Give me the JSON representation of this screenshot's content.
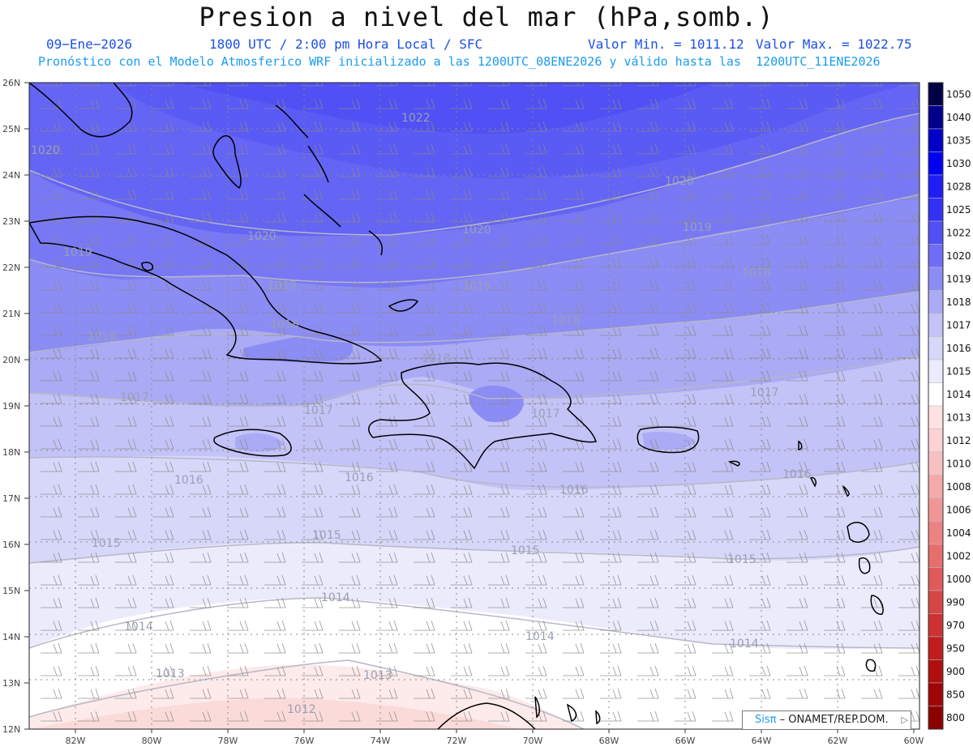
{
  "header": {
    "title": "Presion a nivel del mar (hPa,somb.)",
    "date": "09−Ene−2026",
    "time": "1800 UTC / 2:00 pm Hora Local / SFC",
    "min": "Valor Min. = 1011.12",
    "max": "Valor Max. = 1022.75",
    "forecast": "Pronóstico con el Modelo Atmosferico WRF inicializado a las 1200UTC_08ENE2026 y válido hasta las  1200UTC_11ENE2026"
  },
  "axes": {
    "lat_labels": [
      "26N",
      "25N",
      "24N",
      "23N",
      "22N",
      "21N",
      "20N",
      "19N",
      "18N",
      "17N",
      "16N",
      "15N",
      "14N",
      "13N",
      "12N"
    ],
    "lon_labels": [
      "82W",
      "80W",
      "78W",
      "76W",
      "74W",
      "72W",
      "70W",
      "68W",
      "66W",
      "64W",
      "62W",
      "60W"
    ]
  },
  "colorbar": {
    "levels": [
      "1050",
      "1040",
      "1035",
      "1030",
      "1028",
      "1025",
      "1022",
      "1020",
      "1019",
      "1018",
      "1017",
      "1016",
      "1015",
      "1014",
      "1013",
      "1012",
      "1010",
      "1008",
      "1006",
      "1004",
      "1002",
      "1000",
      "990",
      "970",
      "950",
      "900",
      "850",
      "800"
    ],
    "colors": [
      "#000046",
      "#00008c",
      "#0000c8",
      "#0000f0",
      "#1e1ef5",
      "#3232f5",
      "#5050f5",
      "#6e6ef5",
      "#8c8cf5",
      "#aaaaf5",
      "#c3c3f8",
      "#d7d7fa",
      "#ebebfc",
      "#ffffff",
      "#ffe1e1",
      "#fcd2d2",
      "#f8c0c0",
      "#f4aaaa",
      "#f09696",
      "#ec8282",
      "#e66e6e",
      "#e05a5a",
      "#d64646",
      "#cc3232",
      "#c01e1e",
      "#b00f0f",
      "#a00505",
      "#8c0000"
    ]
  },
  "isobar_labels": [
    {
      "text": "1022"
    },
    {
      "text": "1020"
    },
    {
      "text": "1020"
    },
    {
      "text": "1020"
    },
    {
      "text": "1020"
    },
    {
      "text": "1019"
    },
    {
      "text": "1019"
    },
    {
      "text": "1019"
    },
    {
      "text": "1019"
    },
    {
      "text": "1018"
    },
    {
      "text": "1018"
    },
    {
      "text": "1018"
    },
    {
      "text": "1018"
    },
    {
      "text": "1018"
    },
    {
      "text": "1017"
    },
    {
      "text": "1017"
    },
    {
      "text": "1017"
    },
    {
      "text": "1017"
    },
    {
      "text": "1016"
    },
    {
      "text": "1016"
    },
    {
      "text": "1016"
    },
    {
      "text": "1016"
    },
    {
      "text": "1015"
    },
    {
      "text": "1015"
    },
    {
      "text": "1015"
    },
    {
      "text": "1015"
    },
    {
      "text": "1014"
    },
    {
      "text": "1014"
    },
    {
      "text": "1014"
    },
    {
      "text": "1014"
    },
    {
      "text": "1013"
    },
    {
      "text": "1013"
    },
    {
      "text": "1012"
    }
  ],
  "credit": {
    "sis": "Sisπ",
    "org": "– ONAMET/REP.DOM.",
    "arrow": "▷"
  }
}
